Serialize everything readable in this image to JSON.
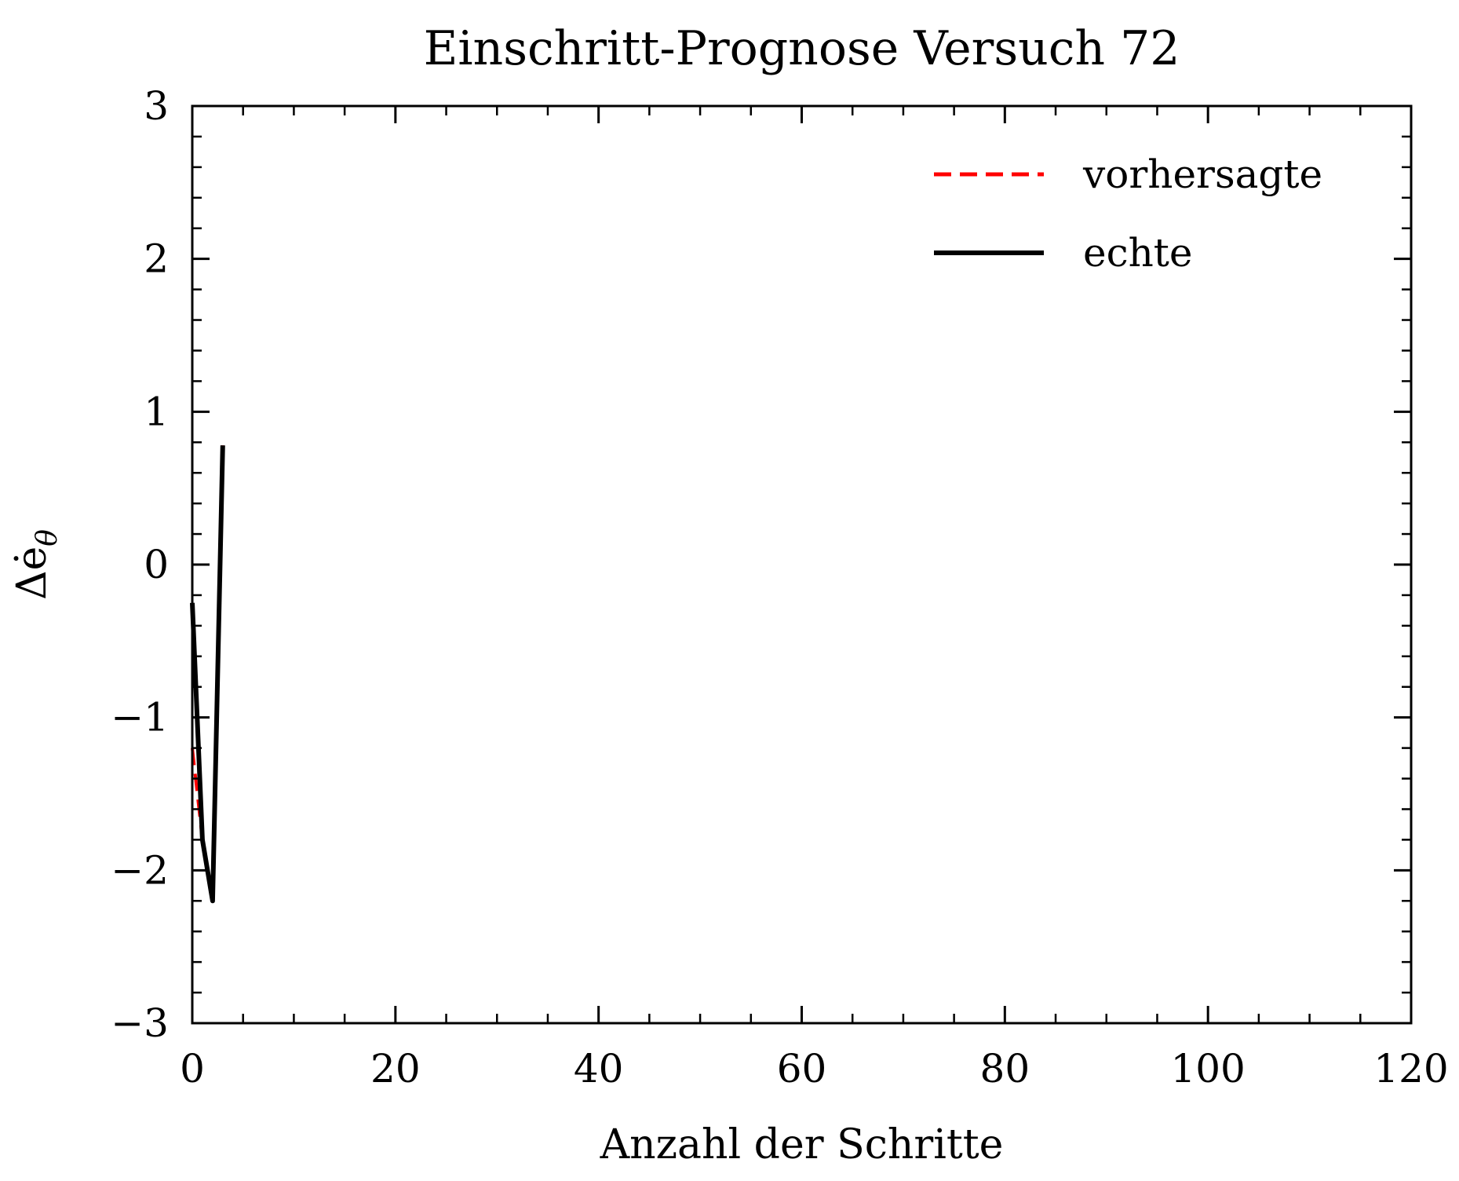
{
  "chart_data": {
    "type": "line",
    "title": "Einschritt-Prognose Versuch 72",
    "xlabel": "Anzahl der Schritte",
    "ylabel": "Δė",
    "ylabel_subscript": "θ",
    "xlim": [
      0,
      120
    ],
    "ylim": [
      -3,
      3
    ],
    "xticks": [
      0,
      20,
      40,
      60,
      80,
      100,
      120
    ],
    "xtick_labels": [
      "0",
      "20",
      "40",
      "60",
      "80",
      "100",
      "120"
    ],
    "yticks": [
      -3,
      -2,
      -1,
      0,
      1,
      2,
      3
    ],
    "ytick_labels": [
      "−3",
      "−2",
      "−1",
      "0",
      "1",
      "2",
      "3"
    ],
    "grid": false,
    "legend_position": "top-right",
    "series": [
      {
        "name": "vorhersagte",
        "color": "#ff0000",
        "style": "dashed",
        "x": [
          0,
          1,
          2,
          3
        ],
        "y": [
          -1.2,
          -1.8,
          -2.2,
          0.78
        ]
      },
      {
        "name": "echte",
        "color": "#000000",
        "style": "solid",
        "x": [
          0,
          1,
          2,
          3
        ],
        "y": [
          -0.25,
          -1.8,
          -2.2,
          0.78
        ]
      }
    ]
  }
}
